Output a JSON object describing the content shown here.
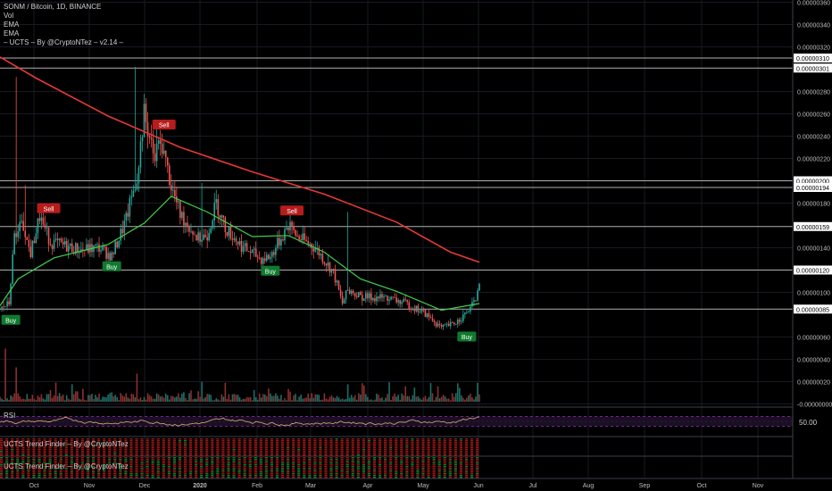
{
  "legend": {
    "symbol": "SONM / Bitcoin, 1D, BINANCE",
    "vol": "Vol",
    "ema1": "EMA",
    "ema2": "EMA",
    "ucts": "– UCTS – By @CryptoNTez – v2.14 –"
  },
  "panes": {
    "rsi_label": "RSI",
    "rsi_value": "50.00",
    "trend1_label": "UCTS Trend Finder – By @CryptoNTez",
    "trend2_label": "UCTS Trend Finder – By @CryptoNTez"
  },
  "colors": {
    "background": "#000000",
    "up": "#26a69a",
    "down": "#ef5350",
    "ema_slow": "#e53935",
    "ema_fast": "#43d04a",
    "rsi": "#c9a06b",
    "rsi_band": "#9c27b0",
    "sr_line": "#b0b0b0",
    "buy_label": "#0f7a2e",
    "sell_label": "#b71c1c"
  },
  "chart_data": {
    "type": "candlestick",
    "title": "SONM / Bitcoin, 1D, BINANCE",
    "xlabel": "",
    "ylabel": "",
    "x_ticks": [
      "Oct",
      "Nov",
      "Dec",
      "2020",
      "Feb",
      "Mar",
      "Apr",
      "May",
      "Jun",
      "Jul",
      "Aug",
      "Sep",
      "Oct",
      "Nov"
    ],
    "y_ticks": [
      "0.00000360",
      "0.00000340",
      "0.00000320",
      "0.00000280",
      "0.00000260",
      "0.00000240",
      "0.00000220",
      "0.00000180",
      "0.00000140",
      "0.00000100",
      "0.00000060",
      "0.00000040",
      "0.00000020",
      "-0.00000000"
    ],
    "ylim": [
      -2e-08,
      3.62e-06
    ],
    "price_levels": [
      "0.00000310",
      "0.00000301",
      "0.00000200",
      "0.00000194",
      "0.00000159",
      "0.00000120",
      "0.00000085"
    ],
    "ema_slow": [
      [
        0,
        3.11e-06
      ],
      [
        20,
        2.92e-06
      ],
      [
        60,
        2.58e-06
      ],
      [
        100,
        2.3e-06
      ],
      [
        140,
        2.08e-06
      ],
      [
        180,
        1.88e-06
      ],
      [
        220,
        1.63e-06
      ],
      [
        250,
        1.36e-06
      ],
      [
        266,
        1.27e-06
      ]
    ],
    "ema_fast": [
      [
        0,
        8.8e-07
      ],
      [
        10,
        1.12e-06
      ],
      [
        30,
        1.31e-06
      ],
      [
        60,
        1.43e-06
      ],
      [
        80,
        1.62e-06
      ],
      [
        95,
        1.86e-06
      ],
      [
        115,
        1.72e-06
      ],
      [
        140,
        1.5e-06
      ],
      [
        160,
        1.51e-06
      ],
      [
        180,
        1.36e-06
      ],
      [
        200,
        1.12e-06
      ],
      [
        220,
        1.01e-06
      ],
      [
        245,
        8.4e-07
      ],
      [
        266,
        9e-07
      ]
    ],
    "signals": [
      {
        "label": "Buy",
        "day": 6,
        "price": 7.5e-07
      },
      {
        "label": "Sell",
        "day": 27,
        "price": 1.75e-06
      },
      {
        "label": "Buy",
        "day": 62,
        "price": 1.23e-06
      },
      {
        "label": "Sell",
        "day": 91,
        "price": 2.5e-06
      },
      {
        "label": "Buy",
        "day": 150,
        "price": 1.19e-06
      },
      {
        "label": "Sell",
        "day": 162,
        "price": 1.73e-06
      },
      {
        "label": "Buy",
        "day": 259,
        "price": 6e-07
      }
    ],
    "anchors": [
      [
        0,
        8.5e-07
      ],
      [
        5,
        9e-07
      ],
      [
        8,
        1.5e-06
      ],
      [
        12,
        1.6e-06
      ],
      [
        17,
        1.35e-06
      ],
      [
        22,
        1.68e-06
      ],
      [
        28,
        1.45e-06
      ],
      [
        35,
        1.42e-06
      ],
      [
        45,
        1.38e-06
      ],
      [
        55,
        1.4e-06
      ],
      [
        62,
        1.32e-06
      ],
      [
        70,
        1.65e-06
      ],
      [
        76,
        2.05e-06
      ],
      [
        80,
        2.6e-06
      ],
      [
        85,
        2.25e-06
      ],
      [
        90,
        2.32e-06
      ],
      [
        95,
        1.95e-06
      ],
      [
        100,
        1.7e-06
      ],
      [
        110,
        1.48e-06
      ],
      [
        115,
        1.52e-06
      ],
      [
        120,
        1.8e-06
      ],
      [
        125,
        1.58e-06
      ],
      [
        135,
        1.4e-06
      ],
      [
        145,
        1.3e-06
      ],
      [
        150,
        1.32e-06
      ],
      [
        160,
        1.6e-06
      ],
      [
        165,
        1.5e-06
      ],
      [
        175,
        1.4e-06
      ],
      [
        185,
        1.18e-06
      ],
      [
        190,
        9e-07
      ],
      [
        193,
        1.02e-06
      ],
      [
        200,
        9.6e-07
      ],
      [
        215,
        9.5e-07
      ],
      [
        225,
        9e-07
      ],
      [
        235,
        8.2e-07
      ],
      [
        245,
        6.8e-07
      ],
      [
        252,
        7.2e-07
      ],
      [
        258,
        8e-07
      ],
      [
        262,
        8.8e-07
      ],
      [
        266,
        1.04e-06
      ]
    ],
    "spikes": [
      [
        9,
        2.93e-06
      ],
      [
        14,
        1.96e-06
      ],
      [
        23,
        1.78e-06
      ],
      [
        75,
        3.02e-06
      ],
      [
        87,
        2.52e-06
      ],
      [
        112,
        1.98e-06
      ],
      [
        161,
        1.72e-06
      ],
      [
        193,
        1.72e-06
      ]
    ],
    "volume_spikes": [
      [
        3,
        0.85
      ],
      [
        9,
        0.55
      ],
      [
        40,
        0.28
      ],
      [
        76,
        0.45
      ],
      [
        112,
        0.32
      ],
      [
        193,
        0.28
      ],
      [
        260,
        0.1
      ]
    ],
    "rsi_band": [
      30,
      70
    ]
  }
}
